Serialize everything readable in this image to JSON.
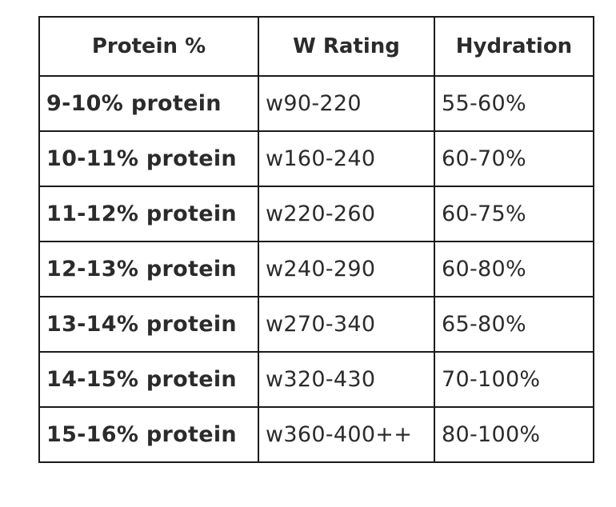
{
  "table": {
    "headers": [
      "Protein %",
      "W Rating",
      "Hydration"
    ],
    "rows": [
      [
        "9-10% protein",
        "w90-220",
        "55-60%"
      ],
      [
        "10-11% protein",
        "w160-240",
        "60-70%"
      ],
      [
        "11-12% protein",
        "w220-260",
        "60-75%"
      ],
      [
        "12-13% protein",
        "w240-290",
        "60-80%"
      ],
      [
        "13-14% protein",
        "w270-340",
        "65-80%"
      ],
      [
        "14-15% protein",
        "w320-430",
        "70-100%"
      ],
      [
        "15-16% protein",
        "w360-400++",
        "80-100%"
      ]
    ]
  }
}
